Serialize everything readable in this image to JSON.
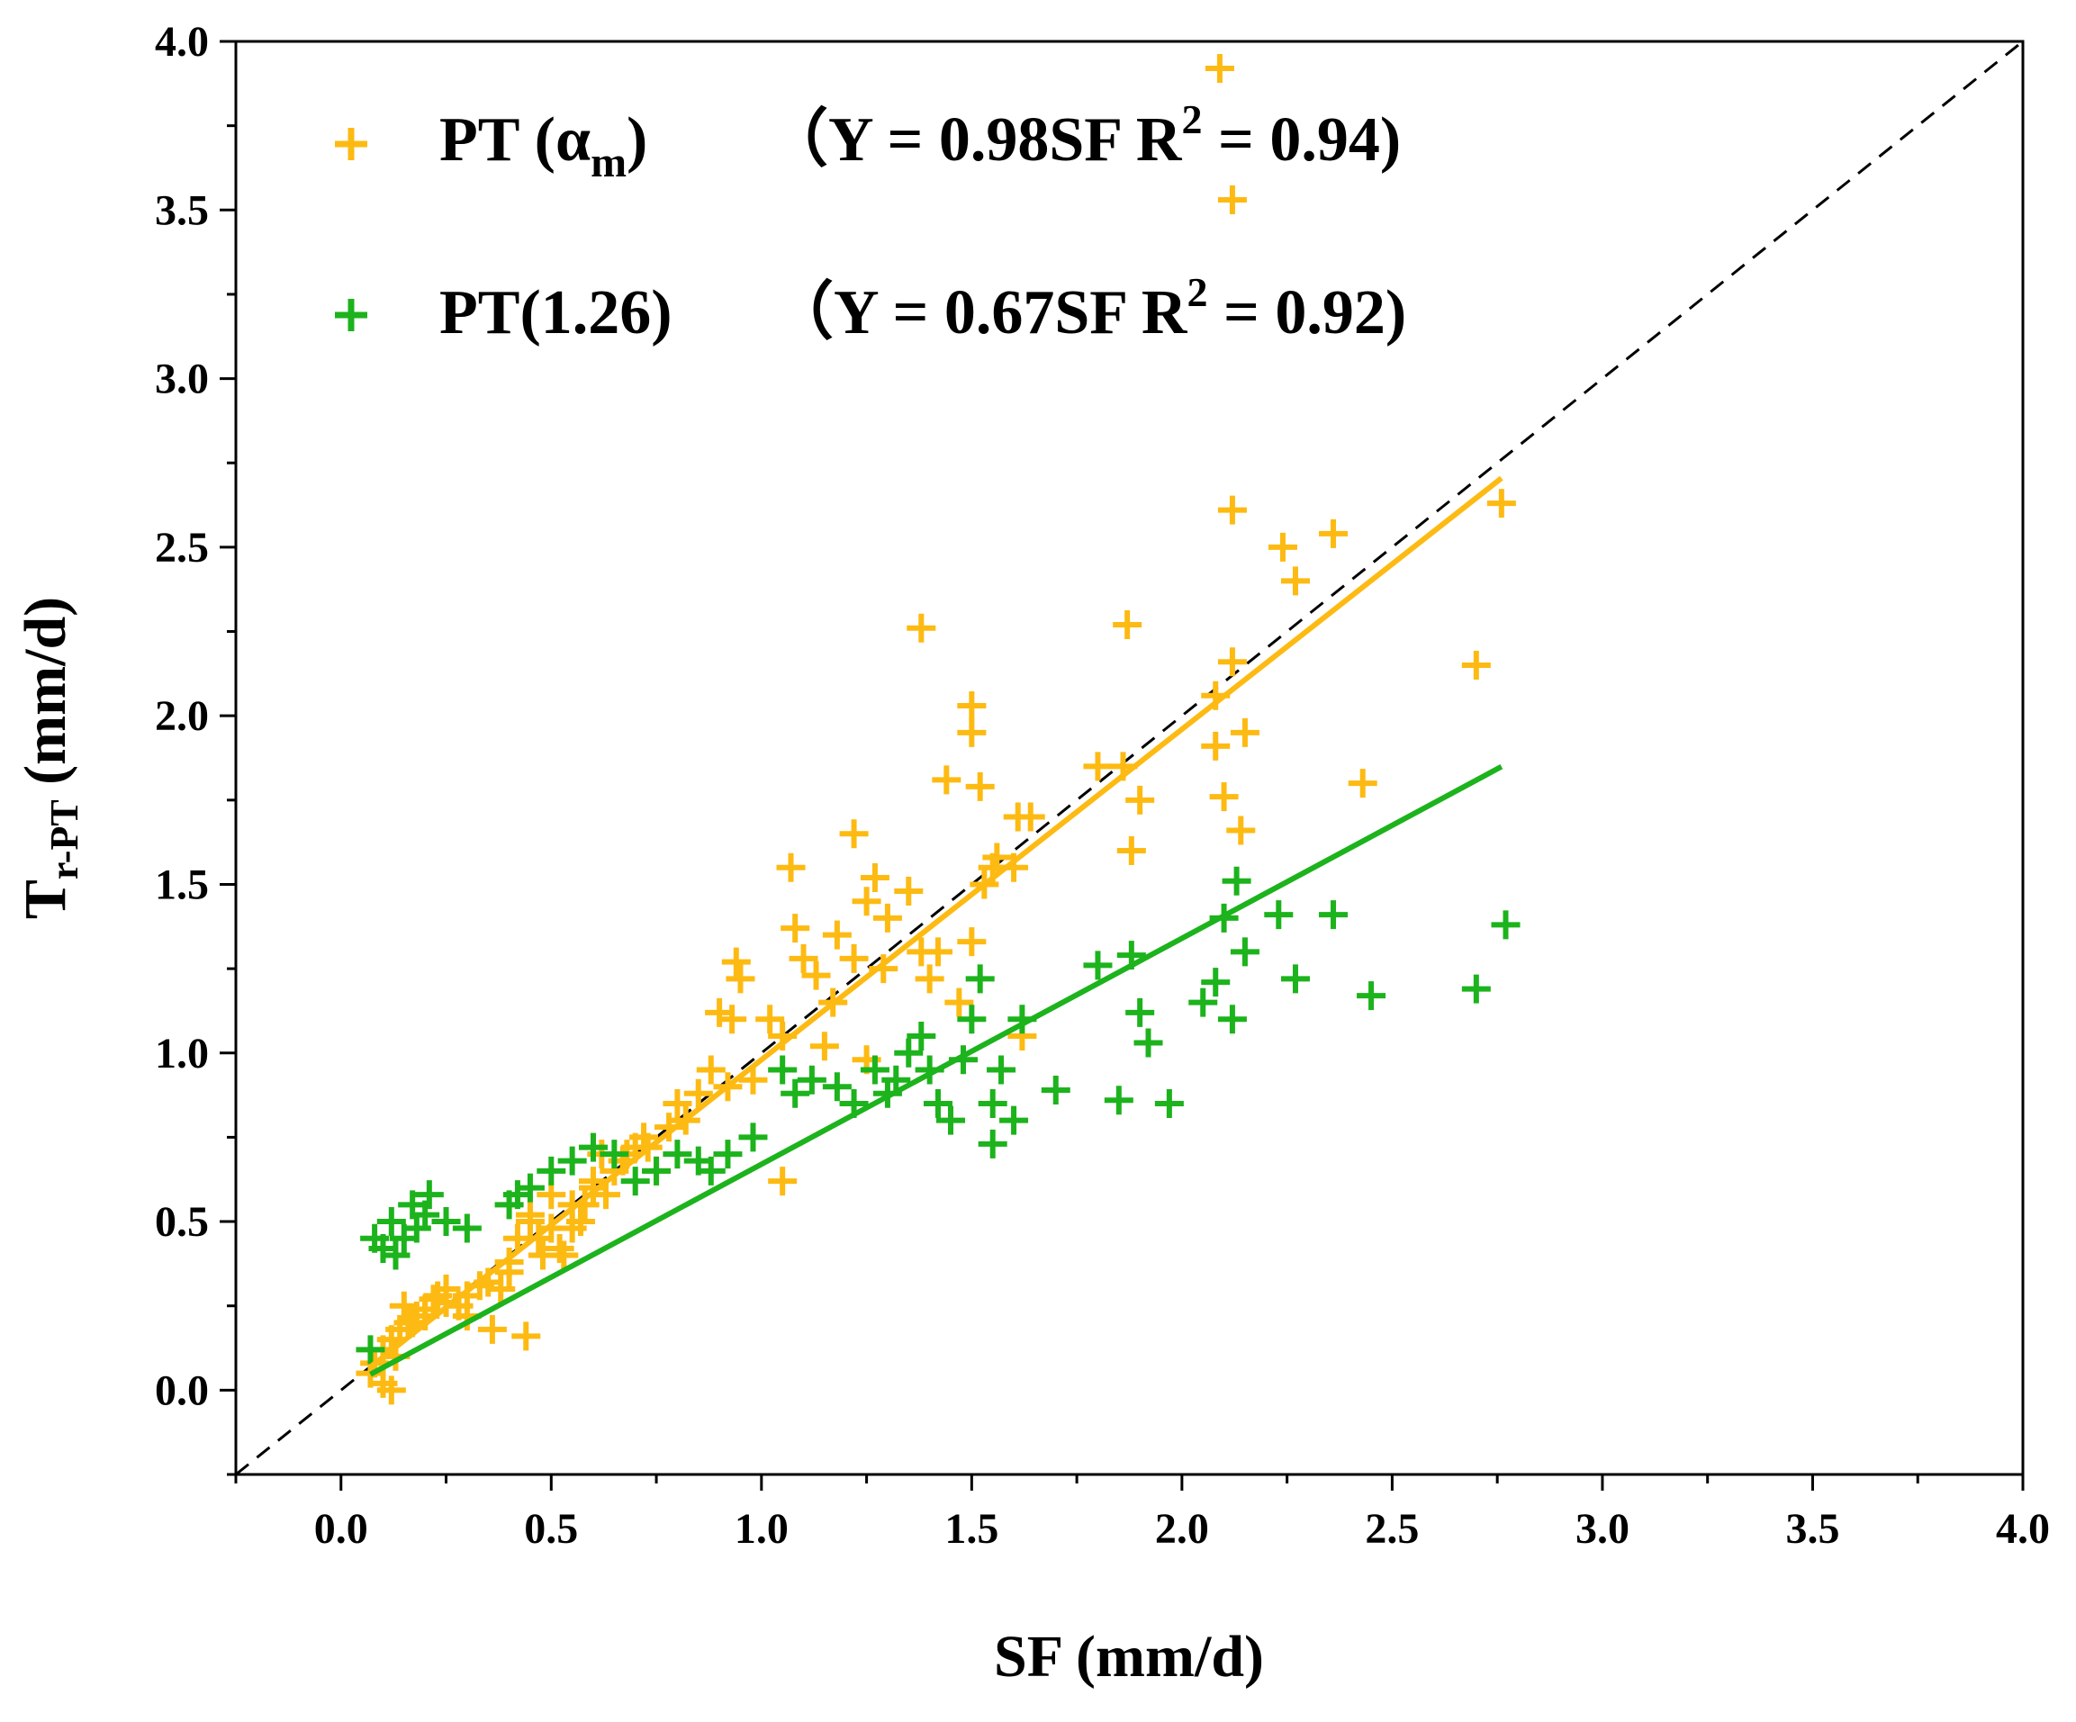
{
  "chart_data": {
    "type": "scatter",
    "title": "",
    "xlabel": "SF (mm/d)",
    "ylabel": {
      "main": "T",
      "sub": "r-PT",
      "unit": " (mm/d)"
    },
    "xlim": [
      -0.25,
      4.0
    ],
    "ylim": [
      -0.25,
      4.0
    ],
    "xticks": [
      "0.0",
      "0.5",
      "1.0",
      "1.5",
      "2.0",
      "2.5",
      "3.0",
      "3.5",
      "4.0"
    ],
    "yticks": [
      "0.0",
      "0.5",
      "1.0",
      "1.5",
      "2.0",
      "2.5",
      "3.0",
      "3.5",
      "4.0"
    ],
    "grid": false,
    "reference_line": {
      "slope": 1.0,
      "style": "dashed",
      "color": "#000000",
      "range": [
        -0.25,
        4.0
      ]
    },
    "series": [
      {
        "name": "PT (α",
        "name_sub": "m",
        "name_tail": ")",
        "equation": "（Y = 0.98SF  R",
        "equation_sup": "2",
        "equation_tail": " = 0.94)",
        "color": "#FDBA12",
        "fit": {
          "slope": 0.98,
          "x_range": [
            0.07,
            2.76
          ]
        },
        "x": [
          2.09,
          2.12,
          2.12,
          2.76,
          2.24,
          2.36,
          2.27,
          1.38,
          1.87,
          2.7,
          2.12,
          1.5,
          1.5,
          2.08,
          2.15,
          1.44,
          2.08,
          1.8,
          2.43,
          1.52,
          1.61,
          1.64,
          1.86,
          1.9,
          2.1,
          2.14,
          1.22,
          1.07,
          1.27,
          1.35,
          1.56,
          1.6,
          1.53,
          1.08,
          1.25,
          1.3,
          1.18,
          1.1,
          0.94,
          0.95,
          1.38,
          1.4,
          1.13,
          1.17,
          1.22,
          1.29,
          0.9,
          0.93,
          1.02,
          1.05,
          1.47,
          1.15,
          1.25,
          1.42,
          0.8,
          0.85,
          0.78,
          0.72,
          0.68,
          0.7,
          0.75,
          1.5,
          1.55,
          1.62,
          1.88,
          1.05,
          0.88,
          0.92,
          0.65,
          0.6,
          0.62,
          0.55,
          0.5,
          0.45,
          0.55,
          0.48,
          0.52,
          0.42,
          0.4,
          0.38,
          0.58,
          0.6,
          0.63,
          0.5,
          0.45,
          0.4,
          0.35,
          0.3,
          0.28,
          0.25,
          0.22,
          0.2,
          0.18,
          0.16,
          0.14,
          0.12,
          0.1,
          0.08,
          0.07,
          0.1,
          0.13,
          0.17,
          0.2,
          0.23,
          0.25,
          0.44,
          0.36,
          0.12,
          0.15,
          0.3,
          0.33,
          0.47,
          0.53,
          0.57,
          0.67,
          0.73,
          0.82,
          0.98
        ],
        "y": [
          3.92,
          3.53,
          2.61,
          2.63,
          2.5,
          2.54,
          2.4,
          2.26,
          2.27,
          2.15,
          2.16,
          2.03,
          1.95,
          2.06,
          1.95,
          1.81,
          1.91,
          1.85,
          1.8,
          1.79,
          1.7,
          1.7,
          1.85,
          1.75,
          1.76,
          1.66,
          1.65,
          1.55,
          1.52,
          1.48,
          1.58,
          1.55,
          1.5,
          1.37,
          1.45,
          1.4,
          1.35,
          1.28,
          1.27,
          1.22,
          1.3,
          1.22,
          1.23,
          1.15,
          1.28,
          1.25,
          1.12,
          1.1,
          1.1,
          1.05,
          1.15,
          1.02,
          0.98,
          1.3,
          0.85,
          0.88,
          0.78,
          0.75,
          0.7,
          0.72,
          0.65,
          1.33,
          1.55,
          1.05,
          1.6,
          0.62,
          0.95,
          0.9,
          0.65,
          0.6,
          0.7,
          0.55,
          0.58,
          0.5,
          0.48,
          0.4,
          0.42,
          0.45,
          0.38,
          0.3,
          0.55,
          0.62,
          0.58,
          0.48,
          0.52,
          0.35,
          0.32,
          0.28,
          0.25,
          0.3,
          0.27,
          0.24,
          0.22,
          0.2,
          0.18,
          0.15,
          0.12,
          0.08,
          0.05,
          0.02,
          0.1,
          0.2,
          0.22,
          0.28,
          0.26,
          0.16,
          0.18,
          0.0,
          0.25,
          0.22,
          0.31,
          0.45,
          0.4,
          0.5,
          0.68,
          0.72,
          0.8,
          0.92
        ]
      },
      {
        "name": "PT(1.26)",
        "equation": "（Y = 0.67SF  R",
        "equation_sup": "2",
        "equation_tail": " = 0.92)",
        "color": "#1CB31C",
        "fit": {
          "slope": 0.67,
          "x_range": [
            0.07,
            2.76
          ]
        },
        "x": [
          2.13,
          2.1,
          2.23,
          2.36,
          2.77,
          2.7,
          2.45,
          2.27,
          2.15,
          2.12,
          1.8,
          1.88,
          1.9,
          2.08,
          2.05,
          1.92,
          1.97,
          1.85,
          1.7,
          1.6,
          1.55,
          1.52,
          1.5,
          1.45,
          1.42,
          1.4,
          1.38,
          1.35,
          1.32,
          1.3,
          1.27,
          1.22,
          1.18,
          1.12,
          1.08,
          1.05,
          1.57,
          1.62,
          1.48,
          1.55,
          0.98,
          0.92,
          0.88,
          0.85,
          0.8,
          0.75,
          0.7,
          0.65,
          0.6,
          0.55,
          0.5,
          0.45,
          0.42,
          0.4,
          0.3,
          0.25,
          0.2,
          0.18,
          0.15,
          0.12,
          0.1,
          0.08,
          0.13,
          0.17,
          0.21,
          0.07
        ],
        "y": [
          1.51,
          1.4,
          1.41,
          1.41,
          1.38,
          1.19,
          1.17,
          1.22,
          1.3,
          1.1,
          1.26,
          1.29,
          1.12,
          1.21,
          1.15,
          1.03,
          0.85,
          0.86,
          0.89,
          0.8,
          0.73,
          1.22,
          1.1,
          0.8,
          0.85,
          0.95,
          1.05,
          1.0,
          0.92,
          0.88,
          0.95,
          0.85,
          0.9,
          0.92,
          0.88,
          0.95,
          0.95,
          1.1,
          0.98,
          0.85,
          0.75,
          0.7,
          0.65,
          0.68,
          0.7,
          0.65,
          0.62,
          0.7,
          0.72,
          0.68,
          0.65,
          0.6,
          0.58,
          0.55,
          0.48,
          0.5,
          0.52,
          0.48,
          0.45,
          0.5,
          0.42,
          0.45,
          0.4,
          0.55,
          0.58,
          0.12
        ]
      }
    ]
  }
}
